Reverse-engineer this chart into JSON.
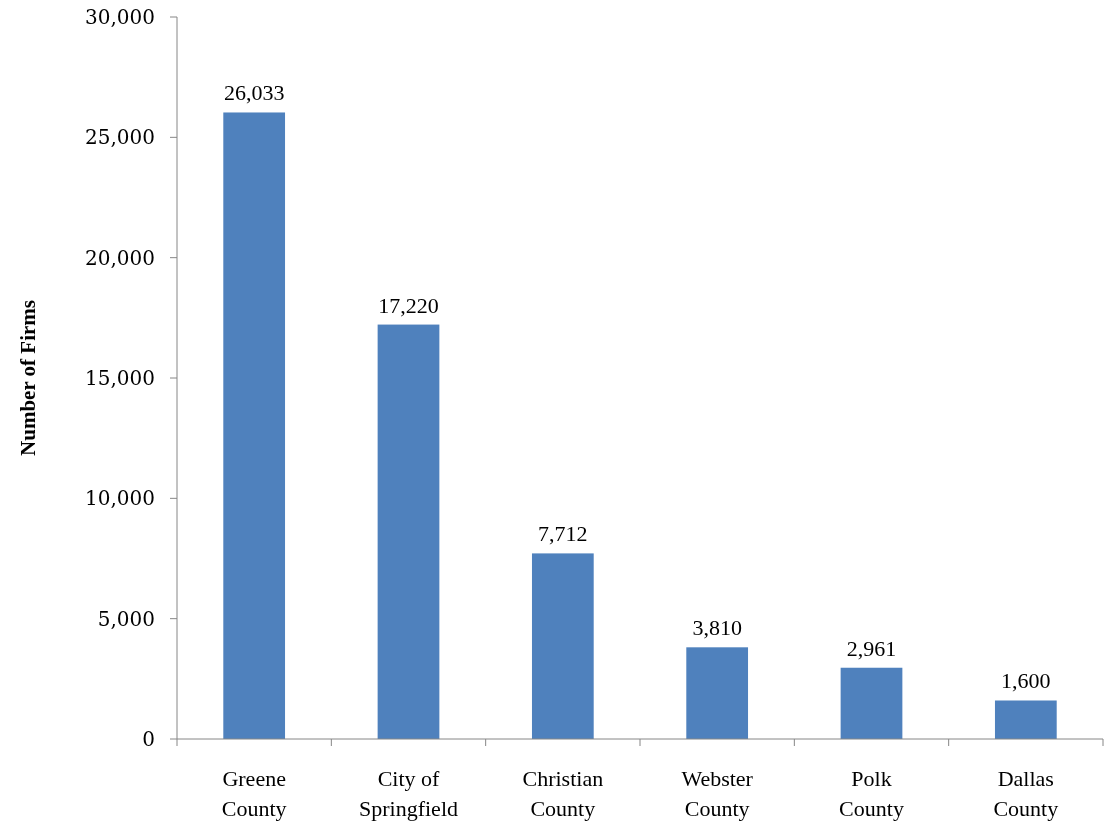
{
  "chart_data": {
    "type": "bar",
    "ylabel": "Number of Firms",
    "categories": [
      "Greene County",
      "City of Springfield",
      "Christian County",
      "Webster County",
      "Polk County",
      "Dallas County"
    ],
    "values": [
      26033,
      17220,
      7712,
      3810,
      2961,
      1600
    ],
    "value_labels": [
      "26,033",
      "17,220",
      "7,712",
      "3,810",
      "2,961",
      "1,600"
    ],
    "color": "#4f81bd",
    "ylim": [
      0,
      30000
    ],
    "yticks": [
      0,
      {
        "value": 5000,
        "label": "5,000"
      },
      {
        "value": 10000,
        "label": "10,000"
      },
      {
        "value": 15000,
        "label": "15,000"
      },
      {
        "value": 20000,
        "label": "20,000"
      },
      {
        "value": 25000,
        "label": "25,000"
      },
      {
        "value": 30000,
        "label": "30,000"
      }
    ],
    "grid": false
  }
}
